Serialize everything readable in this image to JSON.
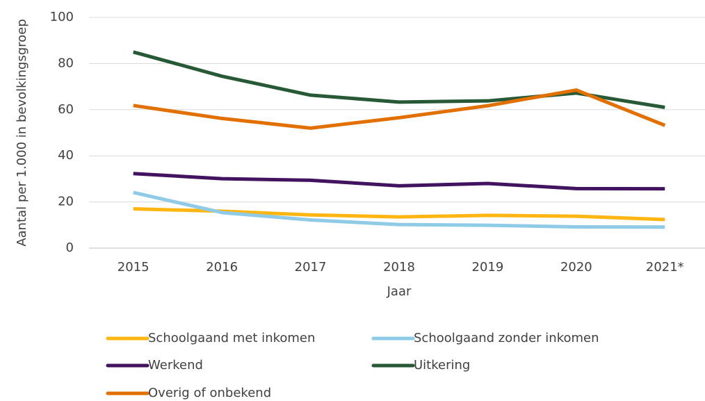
{
  "chart_data": {
    "type": "line",
    "x_label": "Jaar",
    "y_label": "Aantal per 1.000 in bevolkingsgroep",
    "categories": [
      "2015",
      "2016",
      "2017",
      "2018",
      "2019",
      "2020",
      "2021*"
    ],
    "series": [
      {
        "name": "Schoolgaand met inkomen",
        "color": "#ffb612",
        "values": [
          17,
          16,
          14.4,
          13.5,
          14.2,
          13.8,
          12.4
        ]
      },
      {
        "name": "Schoolgaand zonder inkomen",
        "color": "#8fcae7",
        "values": [
          24.1,
          15.4,
          12.2,
          10.2,
          9.9,
          9.2,
          9.1
        ]
      },
      {
        "name": "Werkend",
        "color": "#42145f",
        "values": [
          32.3,
          30.1,
          29.4,
          27,
          28,
          25.8,
          25.7
        ]
      },
      {
        "name": "Uitkering",
        "color": "#275937",
        "values": [
          85,
          74.5,
          66.3,
          63.3,
          63.8,
          67.2,
          61
        ]
      },
      {
        "name": "Overig of onbekend",
        "color": "#e17000",
        "values": [
          61.8,
          56.2,
          52,
          56.5,
          61.7,
          68.5,
          53.2
        ]
      }
    ],
    "ylim": [
      0,
      100
    ],
    "yticks": [
      0,
      20,
      40,
      60,
      80,
      100
    ],
    "grid": true
  }
}
